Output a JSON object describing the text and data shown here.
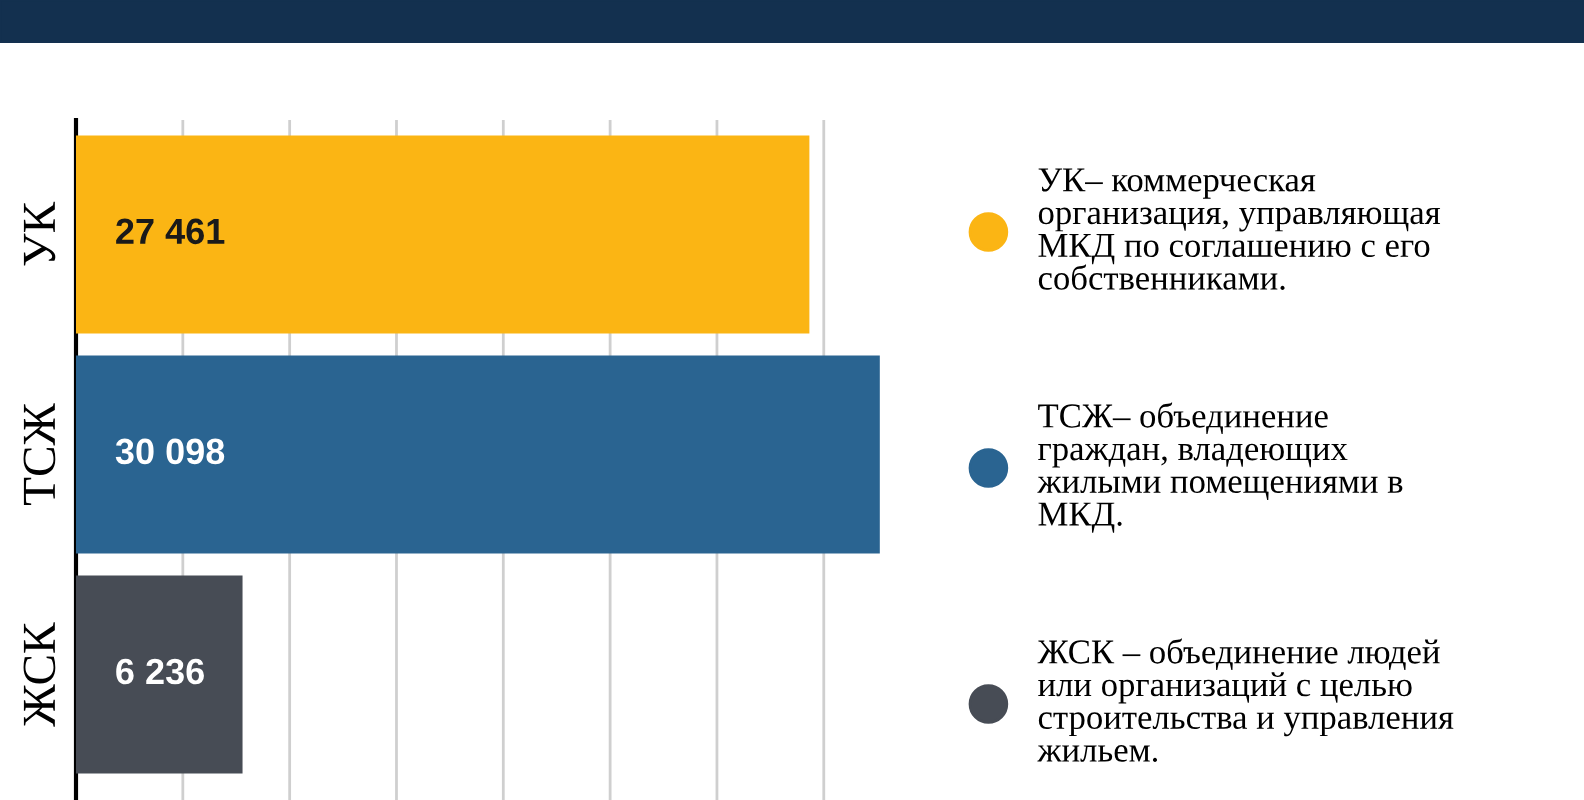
{
  "chart_data": {
    "type": "bar",
    "orientation": "horizontal",
    "categories": [
      "УК",
      "ТСЖ",
      "ЖСК"
    ],
    "values": [
      27461,
      30098,
      6236
    ],
    "value_labels": [
      "27 461",
      "30 098",
      "6 236"
    ],
    "colors": [
      "#fbb514",
      "#2a6491",
      "#474c55"
    ],
    "xticks": [
      {
        "value": 0,
        "label": null
      },
      {
        "value": 4000,
        "label": null
      },
      {
        "value": 8000,
        "label": null
      },
      {
        "value": 12000,
        "label": null
      },
      {
        "value": 16000,
        "label": null
      },
      {
        "value": 20000,
        "label": null
      },
      {
        "value": 24000,
        "label": null
      },
      {
        "value": 28000,
        "label": null
      }
    ],
    "tick_labels": "y",
    "grid": "x",
    "annotations": [
      "УК– коммерческая\nорганизация, управляющая\nМКД по соглашению с его\nсобственниками.",
      "ТСЖ– объединение\nграждан, владеющих\nжилыми помещениями в\nМКД.",
      "ЖСК – объединение людей\nили организаций с целью\nстроительства и управления\nжильем."
    ]
  }
}
